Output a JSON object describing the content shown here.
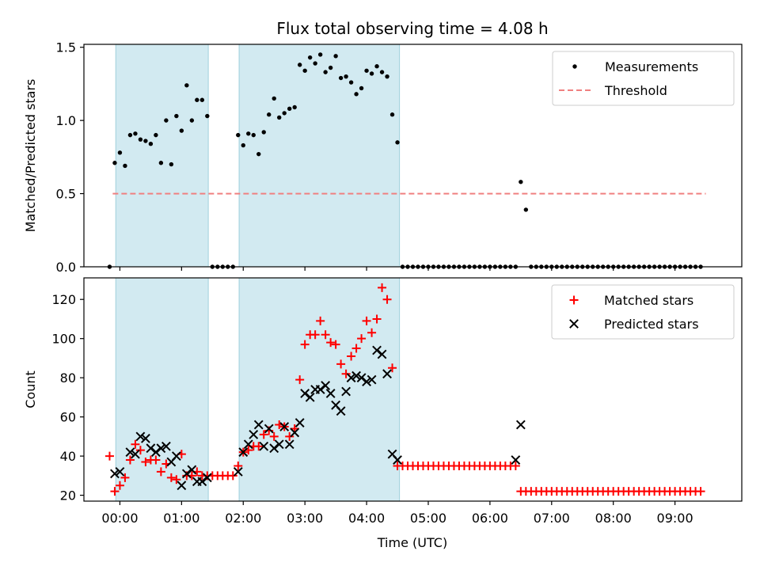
{
  "chart_data": {
    "type": "scatter",
    "title": "Flux total observing time = 4.08 h",
    "xlabel": "Time (UTC)",
    "x_ticks": [
      "00:00",
      "01:00",
      "02:00",
      "03:00",
      "04:00",
      "05:00",
      "06:00",
      "07:00",
      "08:00",
      "09:00"
    ],
    "xlim": [
      "-00:35",
      "10:05"
    ],
    "colors": {
      "measurements": "#000000",
      "threshold": "#f08080",
      "matched": "#ff0000",
      "predicted": "#000000",
      "span_fill": "#add8e6"
    },
    "observing_windows": [
      {
        "start": "-00:04",
        "end": "01:26"
      },
      {
        "start": "01:56",
        "end": "04:32"
      }
    ],
    "panels": [
      {
        "ylabel": "Matched/Predicted stars",
        "ylim": [
          0,
          1.52
        ],
        "y_ticks": [
          "0.0",
          "0.5",
          "1.0",
          "1.5"
        ],
        "y_tick_values": [
          0,
          0.5,
          1.0,
          1.5
        ],
        "legend_position": "upper right",
        "legend": [
          "Measurements",
          "Threshold"
        ],
        "threshold": {
          "name": "Threshold",
          "value": 0.5,
          "x_start": "-00:07",
          "x_end": "09:30"
        },
        "series": [
          {
            "name": "Measurements",
            "marker": "dot",
            "x": [
              "-00:10",
              "-00:05",
              "00:00",
              "00:05",
              "00:10",
              "00:15",
              "00:20",
              "00:25",
              "00:30",
              "00:35",
              "00:40",
              "00:45",
              "00:50",
              "00:55",
              "01:00",
              "01:05",
              "01:10",
              "01:15",
              "01:20",
              "01:25",
              "01:30",
              "01:35",
              "01:40",
              "01:45",
              "01:50",
              "01:55",
              "02:00",
              "02:05",
              "02:10",
              "02:15",
              "02:20",
              "02:25",
              "02:30",
              "02:35",
              "02:40",
              "02:45",
              "02:50",
              "02:55",
              "03:00",
              "03:05",
              "03:10",
              "03:15",
              "03:20",
              "03:25",
              "03:30",
              "03:35",
              "03:40",
              "03:45",
              "03:50",
              "03:55",
              "04:00",
              "04:05",
              "04:10",
              "04:15",
              "04:20",
              "04:25",
              "04:30",
              "04:35",
              "04:40",
              "04:45",
              "04:50",
              "04:55",
              "05:00",
              "05:05",
              "05:10",
              "05:15",
              "05:20",
              "05:25",
              "05:30",
              "05:35",
              "05:40",
              "05:45",
              "05:50",
              "05:55",
              "06:00",
              "06:05",
              "06:10",
              "06:15",
              "06:20",
              "06:25",
              "06:30",
              "06:35",
              "06:40",
              "06:45",
              "06:50",
              "06:55",
              "07:00",
              "07:05",
              "07:10",
              "07:15",
              "07:20",
              "07:25",
              "07:30",
              "07:35",
              "07:40",
              "07:45",
              "07:50",
              "07:55",
              "08:00",
              "08:05",
              "08:10",
              "08:15",
              "08:20",
              "08:25",
              "08:30",
              "08:35",
              "08:40",
              "08:45",
              "08:50",
              "08:55",
              "09:00",
              "09:05",
              "09:10",
              "09:15",
              "09:20",
              "09:25"
            ],
            "values": [
              0.0,
              0.71,
              0.78,
              0.69,
              0.9,
              0.91,
              0.87,
              0.86,
              0.84,
              0.9,
              0.71,
              1.0,
              0.7,
              1.03,
              0.93,
              1.24,
              1.0,
              1.14,
              1.14,
              1.03,
              0.0,
              0.0,
              0.0,
              0.0,
              0.0,
              0.9,
              0.83,
              0.91,
              0.9,
              0.77,
              0.92,
              1.04,
              1.15,
              1.02,
              1.05,
              1.08,
              1.09,
              1.38,
              1.34,
              1.43,
              1.39,
              1.45,
              1.33,
              1.36,
              1.44,
              1.29,
              1.3,
              1.26,
              1.18,
              1.22,
              1.34,
              1.32,
              1.37,
              1.33,
              1.3,
              1.04,
              0.85,
              0.0,
              0.0,
              0.0,
              0.0,
              0.0,
              0.0,
              0.0,
              0.0,
              0.0,
              0.0,
              0.0,
              0.0,
              0.0,
              0.0,
              0.0,
              0.0,
              0.0,
              0.0,
              0.0,
              0.0,
              0.0,
              0.0,
              0.0,
              0.58,
              0.39,
              0.0,
              0.0,
              0.0,
              0.0,
              0.0,
              0.0,
              0.0,
              0.0,
              0.0,
              0.0,
              0.0,
              0.0,
              0.0,
              0.0,
              0.0,
              0.0,
              0.0,
              0.0,
              0.0,
              0.0,
              0.0,
              0.0,
              0.0,
              0.0,
              0.0,
              0.0,
              0.0,
              0.0,
              0.0,
              0.0,
              0.0,
              0.0,
              0.0,
              0.0
            ]
          }
        ]
      },
      {
        "ylabel": "Count",
        "ylim": [
          17,
          131
        ],
        "y_ticks": [
          "20",
          "40",
          "60",
          "80",
          "100",
          "120"
        ],
        "y_tick_values": [
          20,
          40,
          60,
          80,
          100,
          120
        ],
        "legend_position": "upper right",
        "legend": [
          "Matched stars",
          "Predicted stars"
        ],
        "series": [
          {
            "name": "Matched stars",
            "marker": "plus",
            "x": [
              "-00:10",
              "-00:05",
              "00:00",
              "00:05",
              "00:10",
              "00:15",
              "00:20",
              "00:25",
              "00:30",
              "00:35",
              "00:40",
              "00:45",
              "00:50",
              "00:55",
              "01:00",
              "01:05",
              "01:10",
              "01:15",
              "01:20",
              "01:25",
              "01:30",
              "01:35",
              "01:40",
              "01:45",
              "01:50",
              "01:55",
              "02:00",
              "02:05",
              "02:10",
              "02:15",
              "02:20",
              "02:25",
              "02:30",
              "02:35",
              "02:40",
              "02:45",
              "02:50",
              "02:55",
              "03:00",
              "03:05",
              "03:10",
              "03:15",
              "03:20",
              "03:25",
              "03:30",
              "03:35",
              "03:40",
              "03:45",
              "03:50",
              "03:55",
              "04:00",
              "04:05",
              "04:10",
              "04:15",
              "04:20",
              "04:25",
              "04:30",
              "04:35",
              "04:40",
              "04:45",
              "04:50",
              "04:55",
              "05:00",
              "05:05",
              "05:10",
              "05:15",
              "05:20",
              "05:25",
              "05:30",
              "05:35",
              "05:40",
              "05:45",
              "05:50",
              "05:55",
              "06:00",
              "06:05",
              "06:10",
              "06:15",
              "06:20",
              "06:25",
              "06:30",
              "06:35",
              "06:40",
              "06:45",
              "06:50",
              "06:55",
              "07:00",
              "07:05",
              "07:10",
              "07:15",
              "07:20",
              "07:25",
              "07:30",
              "07:35",
              "07:40",
              "07:45",
              "07:50",
              "07:55",
              "08:00",
              "08:05",
              "08:10",
              "08:15",
              "08:20",
              "08:25",
              "08:30",
              "08:35",
              "08:40",
              "08:45",
              "08:50",
              "08:55",
              "09:00",
              "09:05",
              "09:10",
              "09:15",
              "09:20",
              "09:25"
            ],
            "values": [
              40,
              22,
              25,
              29,
              38,
              46,
              43,
              37,
              38,
              38,
              32,
              36,
              29,
              28,
              41,
              30,
              30,
              32,
              30,
              30,
              30,
              30,
              30,
              30,
              30,
              35,
              42,
              43,
              45,
              45,
              51,
              53,
              50,
              56,
              55,
              50,
              54,
              79,
              97,
              102,
              102,
              109,
              102,
              98,
              97,
              87,
              82,
              91,
              95,
              100,
              109,
              103,
              110,
              126,
              120,
              85,
              35,
              35,
              35,
              35,
              35,
              35,
              35,
              35,
              35,
              35,
              35,
              35,
              35,
              35,
              35,
              35,
              35,
              35,
              35,
              35,
              35,
              35,
              35,
              35,
              22,
              22,
              22,
              22,
              22,
              22,
              22,
              22,
              22,
              22,
              22,
              22,
              22,
              22,
              22,
              22,
              22,
              22,
              22,
              22,
              22,
              22,
              22,
              22,
              22,
              22,
              22,
              22,
              22,
              22,
              22,
              22,
              22,
              22,
              22,
              22
            ]
          },
          {
            "name": "Predicted stars",
            "marker": "x",
            "x": [
              "-00:05",
              "00:00",
              "00:10",
              "00:15",
              "00:20",
              "00:25",
              "00:30",
              "00:35",
              "00:40",
              "00:45",
              "00:50",
              "00:55",
              "01:00",
              "01:05",
              "01:10",
              "01:15",
              "01:20",
              "01:25",
              "01:55",
              "02:00",
              "02:05",
              "02:10",
              "02:15",
              "02:20",
              "02:25",
              "02:30",
              "02:35",
              "02:40",
              "02:45",
              "02:50",
              "02:55",
              "03:00",
              "03:05",
              "03:10",
              "03:15",
              "03:20",
              "03:25",
              "03:30",
              "03:35",
              "03:40",
              "03:45",
              "03:50",
              "03:55",
              "04:00",
              "04:05",
              "04:10",
              "04:15",
              "04:20",
              "04:25",
              "04:30",
              "06:25",
              "06:30"
            ],
            "values": [
              31,
              32,
              42,
              41,
              50,
              49,
              44,
              42,
              44,
              45,
              37,
              40,
              25,
              31,
              33,
              27,
              27,
              29,
              32,
              42,
              46,
              51,
              56,
              45,
              54,
              44,
              46,
              55,
              46,
              52,
              57,
              72,
              70,
              74,
              74,
              76,
              72,
              66,
              63,
              73,
              80,
              81,
              80,
              78,
              79,
              94,
              92,
              82,
              41,
              38,
              38,
              56
            ]
          }
        ]
      }
    ]
  }
}
